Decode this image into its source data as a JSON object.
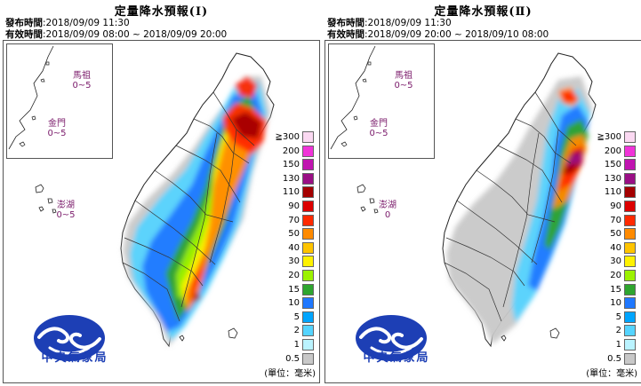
{
  "panels": [
    {
      "title": "定量降水預報(Ⅰ)",
      "issue_label": "發布時間",
      "issue_time": ":2018/09/09 11:30",
      "valid_label": "有效時間",
      "valid_time": ":2018/09/09 08:00 ~ 2018/09/09 20:00",
      "islands": [
        {
          "name": "馬祖",
          "range": "0~5"
        },
        {
          "name": "金門",
          "range": "0~5"
        },
        {
          "name": "澎湖",
          "range": "0~5"
        }
      ],
      "rain_scheme": "north-heavy"
    },
    {
      "title": "定量降水預報(Ⅱ)",
      "issue_label": "發布時間",
      "issue_time": ":2018/09/09 11:30",
      "valid_label": "有效時間",
      "valid_time": ":2018/09/09 20:00 ~ 2018/09/10 08:00",
      "islands": [
        {
          "name": "馬祖",
          "range": "0~5"
        },
        {
          "name": "金門",
          "range": "0~5"
        },
        {
          "name": "澎湖",
          "range": "0"
        }
      ],
      "rain_scheme": "northeast-heavy"
    }
  ],
  "legend": {
    "levels": [
      {
        "label": "≧300",
        "color": "#fbd9f2"
      },
      {
        "label": "200",
        "color": "#f033d8"
      },
      {
        "label": "150",
        "color": "#c014b0"
      },
      {
        "label": "130",
        "color": "#9a0f85"
      },
      {
        "label": "110",
        "color": "#a40000"
      },
      {
        "label": "90",
        "color": "#dc0000"
      },
      {
        "label": "70",
        "color": "#ff2a00"
      },
      {
        "label": "50",
        "color": "#ff8a00"
      },
      {
        "label": "40",
        "color": "#ffc400"
      },
      {
        "label": "30",
        "color": "#fff200"
      },
      {
        "label": "20",
        "color": "#9cf200"
      },
      {
        "label": "15",
        "color": "#2ea52e"
      },
      {
        "label": "10",
        "color": "#1f78ff"
      },
      {
        "label": "5",
        "color": "#00a5ff"
      },
      {
        "label": "2",
        "color": "#55d4ff"
      },
      {
        "label": "1",
        "color": "#baf3ff"
      },
      {
        "label": "0.5",
        "color": "#c8c8c8"
      }
    ],
    "unit": "(單位：毫米)"
  },
  "logo": {
    "text": "中央氣象局",
    "color": "#1d3fb5"
  }
}
